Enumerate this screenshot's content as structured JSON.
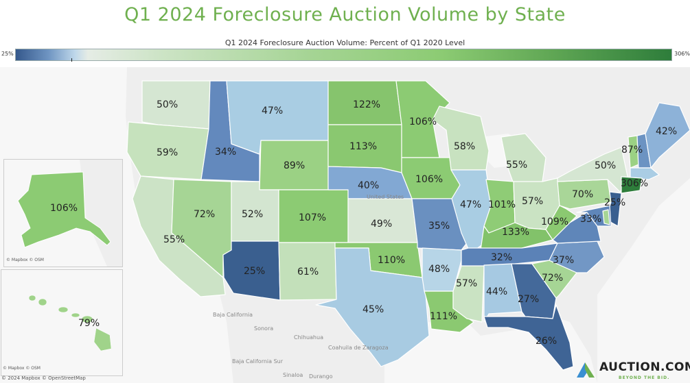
{
  "title": "Q1 2024 Foreclosure Auction Volume by State",
  "legend": {
    "title": "Q1 2024 Foreclosure Auction Volume: Percent of Q1 2020 Level",
    "min_label": "25%",
    "max_label": "306%",
    "min_color": "#35588c",
    "max_color": "#2e7d3b"
  },
  "attribution": {
    "main": "© 2024 Mapbox © OpenStreetMap",
    "alaska": "© Mapbox © OSM",
    "hawaii": "© Mapbox © OSM"
  },
  "places": {
    "united_states": "United States",
    "baja_california": "Baja California",
    "sonora": "Sonora",
    "chihuahua": "Chihuahua",
    "coahuila": "Coahuila de Zaragoza",
    "baja_california_sur": "Baja California Sur",
    "sinaloa": "Sinaloa",
    "durango": "Durango"
  },
  "logo": {
    "name": "AUCTION.COM",
    "tagline": "BEYOND THE BID."
  },
  "states": {
    "WA": {
      "label": "50%",
      "value": 50,
      "color": "#d5e6d2"
    },
    "OR": {
      "label": "59%",
      "value": 59,
      "color": "#c6e2bd"
    },
    "CA": {
      "label": "55%",
      "value": 55,
      "color": "#cce3c6"
    },
    "NV": {
      "label": "72%",
      "value": 72,
      "color": "#a6d595"
    },
    "ID": {
      "label": "34%",
      "value": 34,
      "color": "#6389bd"
    },
    "MT": {
      "label": "47%",
      "value": 47,
      "color": "#a9cde3"
    },
    "WY": {
      "label": "89%",
      "value": 89,
      "color": "#9bd184"
    },
    "UT": {
      "label": "52%",
      "value": 52,
      "color": "#d3e5d0"
    },
    "CO": {
      "label": "107%",
      "value": 107,
      "color": "#8ccb73"
    },
    "AZ": {
      "label": "25%",
      "value": 25,
      "color": "#3a5f8f"
    },
    "NM": {
      "label": "61%",
      "value": 61,
      "color": "#c3e0ba"
    },
    "ND": {
      "label": "122%",
      "value": 122,
      "color": "#86c46d"
    },
    "SD": {
      "label": "113%",
      "value": 113,
      "color": "#8ac870"
    },
    "NE": {
      "label": "40%",
      "value": 40,
      "color": "#82a8d3"
    },
    "KS": {
      "label": "49%",
      "value": 49,
      "color": "#d9e7d6"
    },
    "OK": {
      "label": "110%",
      "value": 110,
      "color": "#8bc971"
    },
    "TX": {
      "label": "45%",
      "value": 45,
      "color": "#a8cbe2"
    },
    "MN": {
      "label": "106%",
      "value": 106,
      "color": "#8ccb73"
    },
    "IA": {
      "label": "106%",
      "value": 106,
      "color": "#8ccb73"
    },
    "MO": {
      "label": "35%",
      "value": 35,
      "color": "#6a90c0"
    },
    "AR": {
      "label": "48%",
      "value": 48,
      "color": "#b7d5e7"
    },
    "LA": {
      "label": "111%",
      "value": 111,
      "color": "#8bc971"
    },
    "WI": {
      "label": "58%",
      "value": 58,
      "color": "#c8e2c0"
    },
    "IL": {
      "label": "47%",
      "value": 47,
      "color": "#a9cde3"
    },
    "MI": {
      "label": "55%",
      "value": 55,
      "color": "#cce3c6"
    },
    "IN": {
      "label": "101%",
      "value": 101,
      "color": "#8fcc76"
    },
    "OH": {
      "label": "57%",
      "value": 57,
      "color": "#cae3c3"
    },
    "KY": {
      "label": "133%",
      "value": 133,
      "color": "#82c26a"
    },
    "TN": {
      "label": "32%",
      "value": 32,
      "color": "#5b82b7"
    },
    "MS": {
      "label": "57%",
      "value": 57,
      "color": "#cae3c3"
    },
    "AL": {
      "label": "44%",
      "value": 44,
      "color": "#a6c9e2"
    },
    "GA": {
      "label": "27%",
      "value": 27,
      "color": "#44699a"
    },
    "FL": {
      "label": "26%",
      "value": 26,
      "color": "#3f6495"
    },
    "SC": {
      "label": "72%",
      "value": 72,
      "color": "#a6d595"
    },
    "NC": {
      "label": "37%",
      "value": 37,
      "color": "#7297c5"
    },
    "VA": {
      "label": "33%",
      "value": 33,
      "color": "#5f86b9"
    },
    "WV": {
      "label": "109%",
      "value": 109,
      "color": "#8bc971"
    },
    "PA": {
      "label": "70%",
      "value": 70,
      "color": "#a9d698"
    },
    "NY": {
      "label": "50%",
      "value": 50,
      "color": "#d5e6d2"
    },
    "VT": {
      "label": "87%",
      "value": 87,
      "color": "#9bd184"
    },
    "NH": {
      "label": "",
      "value": null,
      "color": "#6c93c2"
    },
    "ME": {
      "label": "42%",
      "value": 42,
      "color": "#8db2d8"
    },
    "MA": {
      "label": "",
      "value": null,
      "color": "#aacde4"
    },
    "CT": {
      "label": "306%",
      "value": 306,
      "color": "#2e7d3b"
    },
    "NJ": {
      "label": "25%",
      "value": 25,
      "color": "#3a5f8f"
    },
    "MD": {
      "label": "33%",
      "value": 33,
      "color": "#5f86b9"
    },
    "DE": {
      "label": "",
      "value": null,
      "color": "#a6d595"
    },
    "AK": {
      "label": "106%",
      "value": 106,
      "color": "#8ccb73"
    },
    "HI": {
      "label": "79%",
      "value": 79,
      "color": "#a0d38a"
    }
  }
}
